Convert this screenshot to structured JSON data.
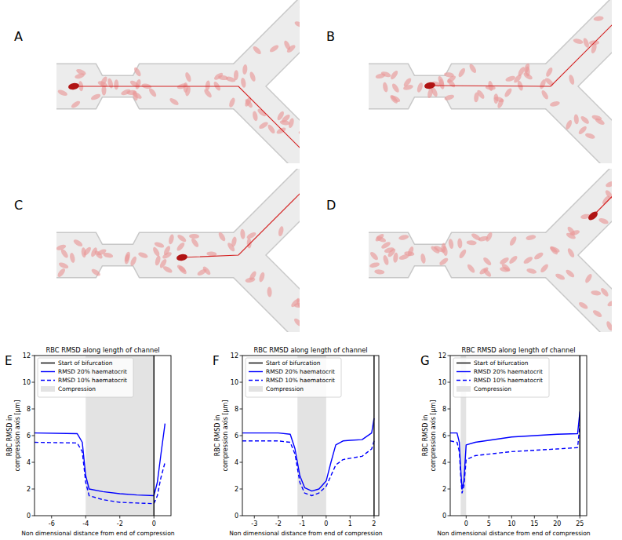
{
  "panels": [
    "A",
    "B",
    "C",
    "D"
  ],
  "chart_data": [
    {
      "type": "line",
      "label": "E",
      "title": "RBC RMSD along length of channel",
      "xlabel": "Non dimensional distance from end of compression",
      "ylabel": [
        "RBC RMSD in",
        "compression axis [μm]"
      ],
      "xlim": [
        -7,
        1
      ],
      "xticks": [
        -6,
        -4,
        -2,
        0
      ],
      "ylim": [
        0,
        12
      ],
      "yticks": [
        0,
        2,
        4,
        6,
        8,
        10,
        12
      ],
      "grid": false,
      "legend": "upper left",
      "bifurcation": {
        "name": "Start of bifurcation",
        "x": 0,
        "color": "#000000"
      },
      "compression": {
        "name": "Compression",
        "x": [
          -4,
          0
        ],
        "color": "#e3e3e3"
      },
      "x": [
        -7,
        -4.5,
        -4.2,
        -4,
        -3.8,
        -3,
        -2,
        -1,
        0,
        0.2,
        0.4,
        0.65
      ],
      "series": [
        {
          "name": "RMSD 20% haematocrit",
          "color": "#0000ff",
          "line_style": "solid",
          "values": [
            6.2,
            6.15,
            5.5,
            3.0,
            2.0,
            1.8,
            1.65,
            1.55,
            1.5,
            2.5,
            4.5,
            6.9
          ]
        },
        {
          "name": "RMSD 10% haematocrit",
          "color": "#0000ff",
          "line_style": "dashed",
          "values": [
            5.5,
            5.45,
            4.8,
            2.5,
            1.5,
            1.2,
            1.0,
            0.95,
            0.9,
            1.5,
            2.8,
            4.0
          ]
        }
      ]
    },
    {
      "type": "line",
      "label": "F",
      "title": "RBC RMSD along length of channel",
      "xlabel": "Non dimensional distance from end of compression",
      "ylabel": [
        "RBC RMSD in",
        "compression axis [μm]"
      ],
      "xlim": [
        -3.5,
        2.2
      ],
      "xticks": [
        -3,
        -2,
        -1,
        0,
        1,
        2
      ],
      "ylim": [
        0,
        12
      ],
      "yticks": [
        0,
        2,
        4,
        6,
        8,
        10,
        12
      ],
      "grid": false,
      "legend": "upper left",
      "bifurcation": {
        "name": "Start of bifurcation",
        "x": 2,
        "color": "#000000"
      },
      "compression": {
        "name": "Compression",
        "x": [
          -1.2,
          0
        ],
        "color": "#e3e3e3"
      },
      "x": [
        -3.5,
        -2,
        -1.5,
        -1.3,
        -1.1,
        -0.9,
        -0.6,
        -0.3,
        0,
        0.2,
        0.4,
        0.7,
        1.0,
        1.5,
        1.9,
        2.0
      ],
      "series": [
        {
          "name": "RMSD 20% haematocrit",
          "color": "#0000ff",
          "line_style": "solid",
          "values": [
            6.2,
            6.2,
            6.1,
            5.0,
            3.0,
            2.1,
            1.85,
            2.0,
            2.6,
            4.0,
            5.3,
            5.6,
            5.65,
            5.7,
            6.2,
            7.3
          ]
        },
        {
          "name": "RMSD 10% haematocrit",
          "color": "#0000ff",
          "line_style": "dashed",
          "values": [
            5.6,
            5.6,
            5.5,
            4.6,
            2.5,
            1.7,
            1.5,
            1.7,
            2.2,
            3.0,
            3.8,
            4.2,
            4.3,
            4.45,
            5.0,
            5.6
          ]
        }
      ]
    },
    {
      "type": "line",
      "label": "G",
      "title": "RBC RMSD along length of channel",
      "xlabel": "Non dimensional distance from end of compression",
      "ylabel": [
        "RBC RMSD in",
        "compression axis [μm]"
      ],
      "xlim": [
        -3.5,
        26.5
      ],
      "xticks": [
        0,
        5,
        10,
        15,
        20,
        25
      ],
      "ylim": [
        0,
        12
      ],
      "yticks": [
        0,
        2,
        4,
        6,
        8,
        10,
        12
      ],
      "grid": false,
      "legend": "upper left",
      "bifurcation": {
        "name": "Start of bifurcation",
        "x": 25,
        "color": "#000000"
      },
      "compression": {
        "name": "Compression",
        "x": [
          -1.2,
          0
        ],
        "color": "#e3e3e3"
      },
      "x": [
        -3.5,
        -2,
        -1.5,
        -1.2,
        -0.9,
        -0.5,
        0,
        2,
        10,
        20,
        24.5,
        25
      ],
      "series": [
        {
          "name": "RMSD 20% haematocrit",
          "color": "#0000ff",
          "line_style": "solid",
          "values": [
            6.2,
            6.2,
            5.5,
            3.5,
            2.0,
            2.6,
            5.3,
            5.5,
            5.9,
            6.1,
            6.15,
            7.8
          ]
        },
        {
          "name": "RMSD 10% haematocrit",
          "color": "#0000ff",
          "line_style": "dashed",
          "values": [
            5.6,
            5.5,
            4.8,
            3.0,
            1.7,
            2.2,
            4.2,
            4.5,
            4.8,
            5.0,
            5.1,
            6.8
          ]
        }
      ]
    }
  ]
}
